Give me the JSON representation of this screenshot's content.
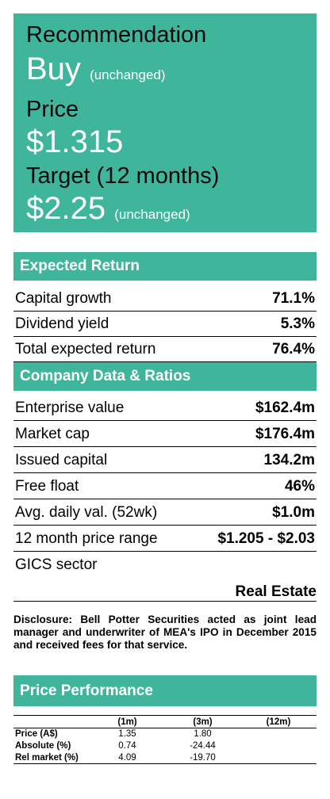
{
  "recommendation": {
    "rec_label": "Recommendation",
    "rec_value": "Buy",
    "rec_note": "(unchanged)",
    "price_label": "Price",
    "price_value": "$1.315",
    "target_label": "Target (12 months)",
    "target_value": "$2.25",
    "target_note": "(unchanged)"
  },
  "expected_return": {
    "title": "Expected Return",
    "rows": [
      {
        "label": "Capital growth",
        "value": "71.1%"
      },
      {
        "label": "Dividend yield",
        "value": "5.3%"
      },
      {
        "label": "Total expected return",
        "value": "76.4%"
      }
    ]
  },
  "company_data": {
    "title": "Company Data & Ratios",
    "rows": [
      {
        "label": "Enterprise value",
        "value": "$162.4m"
      },
      {
        "label": "Market cap",
        "value": "$176.4m"
      },
      {
        "label": "Issued capital",
        "value": "134.2m"
      },
      {
        "label": "Free float",
        "value": "46%"
      },
      {
        "label": "Avg. daily val. (52wk)",
        "value": "$1.0m"
      },
      {
        "label": "12 month price range",
        "value": "$1.205 - $2.03"
      }
    ],
    "gics_label": "GICS sector",
    "gics_value": "Real Estate"
  },
  "disclosure": "Disclosure: Bell Potter Securities acted as joint lead manager and underwriter of MEA's IPO in December 2015 and received fees for that service.",
  "price_performance": {
    "title": "Price Performance",
    "columns": [
      "",
      "(1m)",
      "(3m)",
      "(12m)"
    ],
    "rows": [
      {
        "label": "Price (A$)",
        "m1": "1.35",
        "m3": "1.80",
        "m12": ""
      },
      {
        "label": "Absolute (%)",
        "m1": "0.74",
        "m3": "-24.44",
        "m12": ""
      },
      {
        "label": "Rel market (%)",
        "m1": "4.09",
        "m3": "-19.70",
        "m12": ""
      }
    ]
  },
  "colors": {
    "accent": "#3fb59c"
  }
}
